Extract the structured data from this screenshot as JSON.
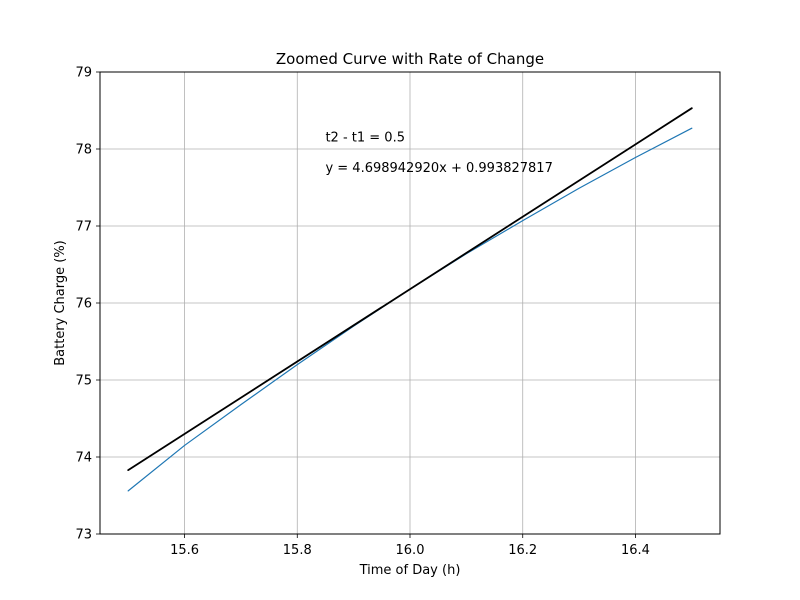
{
  "chart_data": {
    "type": "line",
    "title": "Zoomed Curve with Rate of Change",
    "xlabel": "Time of Day (h)",
    "ylabel": "Battery Charge (%)",
    "xlim": [
      15.45,
      16.55
    ],
    "ylim": [
      73,
      79
    ],
    "xticks": [
      15.6,
      15.8,
      16.0,
      16.2,
      16.4
    ],
    "xtick_labels": [
      "15.6",
      "15.8",
      "16.0",
      "16.2",
      "16.4"
    ],
    "yticks": [
      73,
      74,
      75,
      76,
      77,
      78,
      79
    ],
    "ytick_labels": [
      "73",
      "74",
      "75",
      "76",
      "77",
      "78",
      "79"
    ],
    "grid": true,
    "annotations": [
      {
        "text": "t2 - t1 = 0.5",
        "x": 15.85,
        "y": 78.1
      },
      {
        "text": "y = 4.698942920x + 0.993827817",
        "x": 15.85,
        "y": 77.7
      }
    ],
    "series": [
      {
        "color": "#1f77b4",
        "x": [
          15.5,
          15.6,
          15.7,
          15.8,
          15.9,
          16.0,
          16.1,
          16.2,
          16.3,
          16.4,
          16.5
        ],
        "y": [
          73.56,
          74.15,
          74.68,
          75.2,
          75.7,
          76.18,
          76.64,
          77.07,
          77.49,
          77.89,
          78.27
        ]
      },
      {
        "color": "#000000",
        "x": [
          15.5,
          16.5
        ],
        "y": [
          73.83,
          78.53
        ]
      }
    ]
  }
}
